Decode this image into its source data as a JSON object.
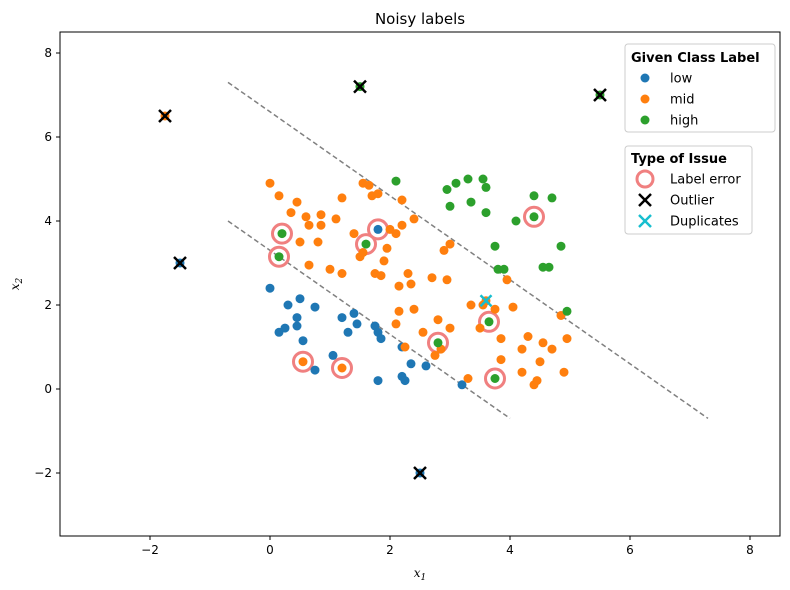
{
  "chart_data": {
    "type": "scatter",
    "title": "Noisy labels",
    "xlabel": "x",
    "xlabel_sub": "1",
    "ylabel": "x",
    "ylabel_sub": "2",
    "xlim": [
      -3.5,
      8.5
    ],
    "ylim": [
      -3.5,
      8.5
    ],
    "xticks": [
      -2,
      0,
      2,
      4,
      6,
      8
    ],
    "yticks": [
      -2,
      0,
      2,
      4,
      6,
      8
    ],
    "grid": false,
    "colors": {
      "low": "#1f77b4",
      "mid": "#ff7f0e",
      "high": "#2ca02c",
      "label_error": "#f08080",
      "outlier": "#000000",
      "duplicates": "#17becf",
      "boundary": "#808080"
    },
    "series": [
      {
        "name": "low",
        "points": [
          [
            0,
            2.4
          ],
          [
            0.15,
            1.35
          ],
          [
            0.25,
            1.45
          ],
          [
            0.3,
            2.0
          ],
          [
            0.45,
            1.7
          ],
          [
            0.45,
            1.5
          ],
          [
            0.5,
            2.15
          ],
          [
            0.55,
            1.15
          ],
          [
            0.75,
            0.45
          ],
          [
            0.75,
            1.95
          ],
          [
            1.05,
            0.8
          ],
          [
            1.2,
            1.7
          ],
          [
            1.3,
            1.35
          ],
          [
            1.4,
            1.8
          ],
          [
            1.45,
            1.55
          ],
          [
            1.75,
            1.5
          ],
          [
            1.8,
            1.35
          ],
          [
            1.8,
            0.2
          ],
          [
            1.85,
            1.2
          ],
          [
            2.2,
            1.0
          ],
          [
            2.2,
            0.3
          ],
          [
            2.25,
            0.2
          ],
          [
            2.35,
            0.6
          ],
          [
            2.6,
            0.55
          ],
          [
            3.2,
            0.1
          ],
          [
            1.8,
            3.8
          ]
        ]
      },
      {
        "name": "mid",
        "points": [
          [
            0,
            4.9
          ],
          [
            0.15,
            4.6
          ],
          [
            0.35,
            4.2
          ],
          [
            0.45,
            4.45
          ],
          [
            0.5,
            3.5
          ],
          [
            0.6,
            4.1
          ],
          [
            0.65,
            3.9
          ],
          [
            0.65,
            2.95
          ],
          [
            0.8,
            3.5
          ],
          [
            0.85,
            4.15
          ],
          [
            0.85,
            3.9
          ],
          [
            1.0,
            2.85
          ],
          [
            1.1,
            4.05
          ],
          [
            1.2,
            4.55
          ],
          [
            1.2,
            2.75
          ],
          [
            1.4,
            3.7
          ],
          [
            1.5,
            3.15
          ],
          [
            1.55,
            3.25
          ],
          [
            1.55,
            4.9
          ],
          [
            1.65,
            4.85
          ],
          [
            1.7,
            4.6
          ],
          [
            1.75,
            2.75
          ],
          [
            1.8,
            4.65
          ],
          [
            1.85,
            2.7
          ],
          [
            1.9,
            3.05
          ],
          [
            1.95,
            3.35
          ],
          [
            2.0,
            3.8
          ],
          [
            2.1,
            3.7
          ],
          [
            2.1,
            1.55
          ],
          [
            2.15,
            1.85
          ],
          [
            2.15,
            2.45
          ],
          [
            2.2,
            4.5
          ],
          [
            2.2,
            3.9
          ],
          [
            2.25,
            1.0
          ],
          [
            2.3,
            2.75
          ],
          [
            2.35,
            2.5
          ],
          [
            2.4,
            4.05
          ],
          [
            2.4,
            1.9
          ],
          [
            2.55,
            1.35
          ],
          [
            2.7,
            2.65
          ],
          [
            2.75,
            0.8
          ],
          [
            2.8,
            1.65
          ],
          [
            2.85,
            0.95
          ],
          [
            2.9,
            3.3
          ],
          [
            2.95,
            2.6
          ],
          [
            3.0,
            3.45
          ],
          [
            3.0,
            1.45
          ],
          [
            3.3,
            0.25
          ],
          [
            3.35,
            2.0
          ],
          [
            3.5,
            1.45
          ],
          [
            3.55,
            2.0
          ],
          [
            3.6,
            2.1
          ],
          [
            3.75,
            1.9
          ],
          [
            3.85,
            1.2
          ],
          [
            3.85,
            0.7
          ],
          [
            3.95,
            2.6
          ],
          [
            4.05,
            1.95
          ],
          [
            4.2,
            0.95
          ],
          [
            4.2,
            0.4
          ],
          [
            4.3,
            1.25
          ],
          [
            4.4,
            0.1
          ],
          [
            4.45,
            0.2
          ],
          [
            4.5,
            0.65
          ],
          [
            4.55,
            1.1
          ],
          [
            4.7,
            0.95
          ],
          [
            4.85,
            1.75
          ],
          [
            4.9,
            0.4
          ],
          [
            4.95,
            1.2
          ],
          [
            0.55,
            0.65
          ],
          [
            1.2,
            0.5
          ]
        ]
      },
      {
        "name": "high",
        "points": [
          [
            2.1,
            4.95
          ],
          [
            2.95,
            4.75
          ],
          [
            3.0,
            4.35
          ],
          [
            3.1,
            4.9
          ],
          [
            3.3,
            5.0
          ],
          [
            3.35,
            4.45
          ],
          [
            3.55,
            5.0
          ],
          [
            3.6,
            4.8
          ],
          [
            3.6,
            4.2
          ],
          [
            3.75,
            3.4
          ],
          [
            3.8,
            2.85
          ],
          [
            3.9,
            2.85
          ],
          [
            4.1,
            4.0
          ],
          [
            4.4,
            4.6
          ],
          [
            4.55,
            2.9
          ],
          [
            4.65,
            2.9
          ],
          [
            4.7,
            4.55
          ],
          [
            4.85,
            3.4
          ],
          [
            4.95,
            1.85
          ],
          [
            0.2,
            3.7
          ],
          [
            0.15,
            3.15
          ],
          [
            1.6,
            3.45
          ],
          [
            2.8,
            1.1
          ],
          [
            3.65,
            1.6
          ],
          [
            3.75,
            0.25
          ],
          [
            4.4,
            4.1
          ]
        ]
      }
    ],
    "label_errors": [
      [
        0.2,
        3.7
      ],
      [
        0.15,
        3.15
      ],
      [
        1.6,
        3.45
      ],
      [
        1.8,
        3.8
      ],
      [
        0.55,
        0.65
      ],
      [
        1.2,
        0.5
      ],
      [
        2.8,
        1.1
      ],
      [
        3.65,
        1.6
      ],
      [
        3.75,
        0.25
      ],
      [
        4.4,
        4.1
      ]
    ],
    "outliers": [
      {
        "x": -1.75,
        "y": 6.5,
        "class": "mid"
      },
      {
        "x": 1.5,
        "y": 7.2,
        "class": "high"
      },
      {
        "x": 5.5,
        "y": 7.0,
        "class": "high"
      },
      {
        "x": -1.5,
        "y": 3.0,
        "class": "low"
      },
      {
        "x": 2.5,
        "y": -2.0,
        "class": "low"
      }
    ],
    "duplicates": [
      [
        3.6,
        2.1
      ]
    ],
    "boundaries": [
      {
        "x1": -0.7,
        "y1": 7.3,
        "x2": 7.3,
        "y2": -0.7
      },
      {
        "x1": -0.7,
        "y1": 4.0,
        "x2": 4.0,
        "y2": -0.7
      }
    ],
    "legends": [
      {
        "title": "Given Class Label",
        "placement": "top-right",
        "items": [
          {
            "label": "low",
            "marker": "dot",
            "color": "#1f77b4"
          },
          {
            "label": "mid",
            "marker": "dot",
            "color": "#ff7f0e"
          },
          {
            "label": "high",
            "marker": "dot",
            "color": "#2ca02c"
          }
        ]
      },
      {
        "title": "Type of Issue",
        "placement": "right",
        "items": [
          {
            "label": "Label error",
            "marker": "ring",
            "color": "#f08080"
          },
          {
            "label": "Outlier",
            "marker": "cross",
            "color": "#000000"
          },
          {
            "label": "Duplicates",
            "marker": "cross",
            "color": "#17becf"
          }
        ]
      }
    ]
  }
}
